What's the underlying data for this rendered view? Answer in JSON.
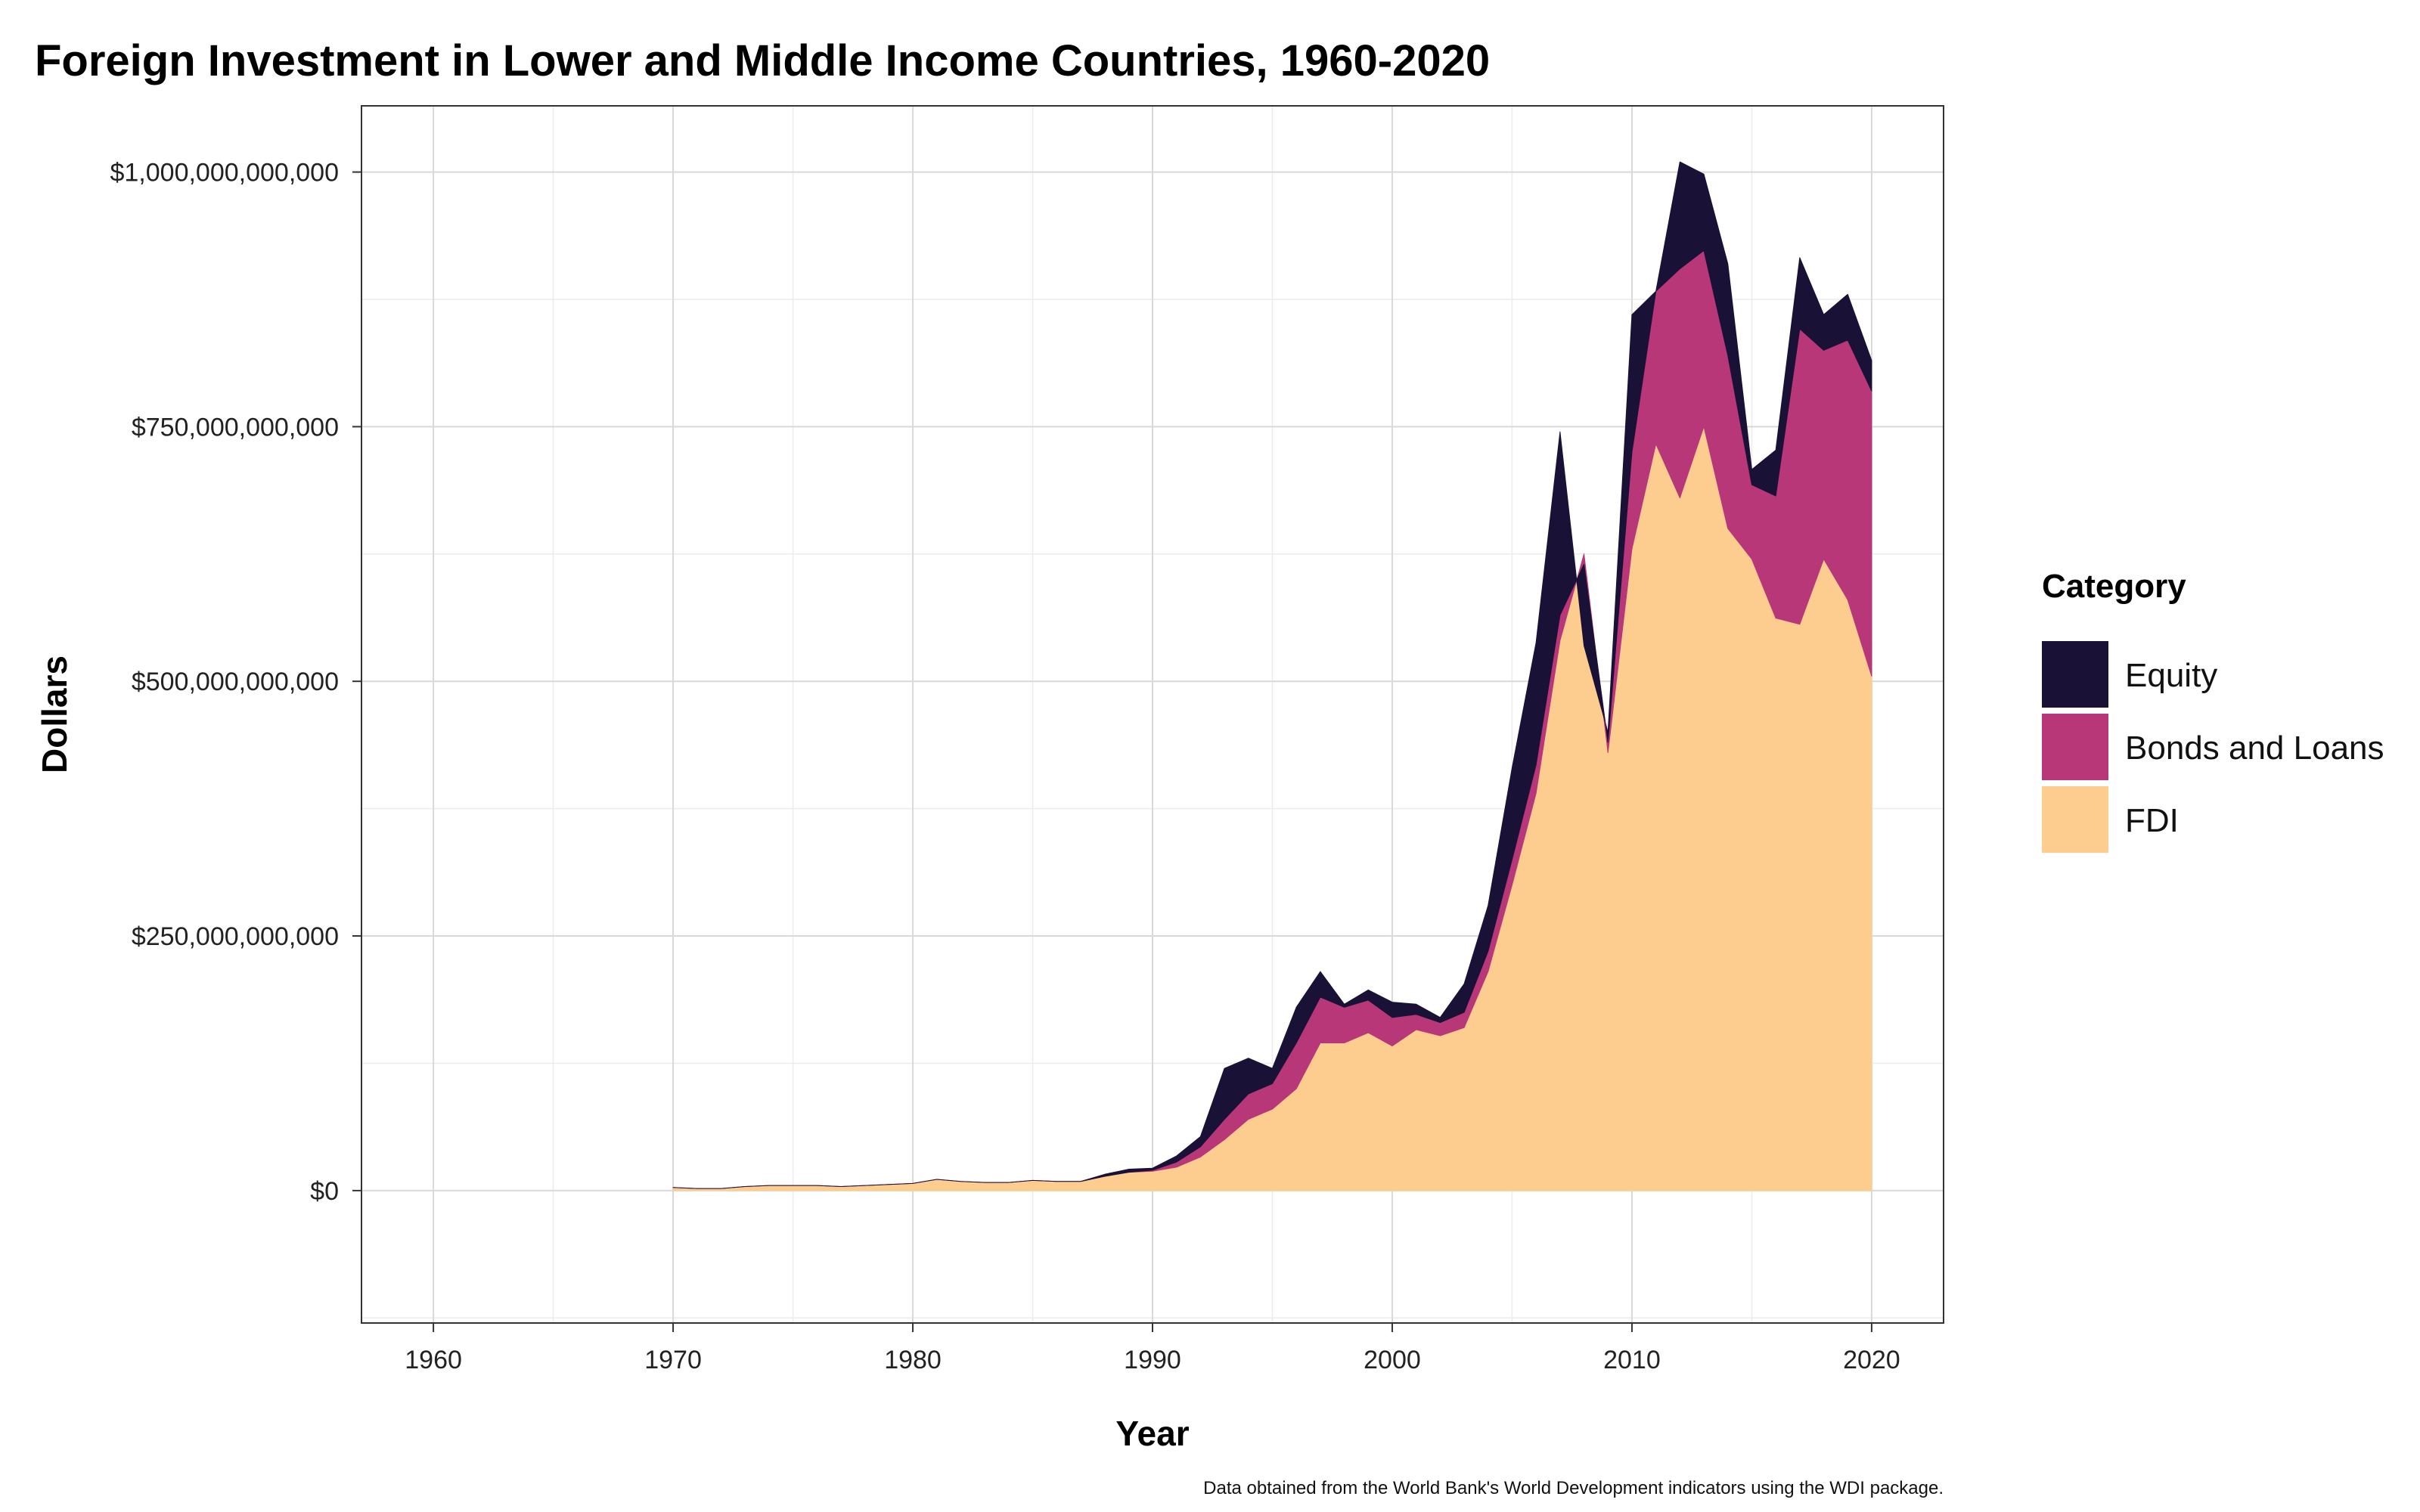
{
  "chart_data": {
    "type": "area",
    "stacked": true,
    "title": "Foreign Investment in Lower and Middle Income Countries, 1960-2020",
    "xlabel": "Year",
    "ylabel": "Dollars",
    "caption": "Data obtained from the World Bank's World Development indicators using the WDI package.",
    "xlim": [
      1957,
      2023
    ],
    "ylim": [
      -130000000000,
      1065000000000
    ],
    "x_ticks": [
      1960,
      1970,
      1980,
      1990,
      2000,
      2010,
      2020
    ],
    "x_tick_labels": [
      "1960",
      "1970",
      "1980",
      "1990",
      "2000",
      "2010",
      "2020"
    ],
    "y_ticks": [
      0,
      250000000000,
      500000000000,
      750000000000,
      1000000000000
    ],
    "y_tick_labels": [
      "$0",
      "$250,000,000,000",
      "$500,000,000,000",
      "$750,000,000,000",
      "$1,000,000,000,000"
    ],
    "grid": true,
    "legend": {
      "title": "Category",
      "position": "right"
    },
    "x": [
      1970,
      1971,
      1972,
      1973,
      1974,
      1975,
      1976,
      1977,
      1978,
      1979,
      1980,
      1981,
      1982,
      1983,
      1984,
      1985,
      1986,
      1987,
      1988,
      1989,
      1990,
      1991,
      1992,
      1993,
      1994,
      1995,
      1996,
      1997,
      1998,
      1999,
      2000,
      2001,
      2002,
      2003,
      2004,
      2005,
      2006,
      2007,
      2008,
      2009,
      2010,
      2011,
      2012,
      2013,
      2014,
      2015,
      2016,
      2017,
      2018,
      2019,
      2020
    ],
    "series": [
      {
        "name": "FDI",
        "color": "#FDCD8F",
        "values": [
          3000000000,
          2000000000,
          2000000000,
          4000000000,
          5000000000,
          5000000000,
          5000000000,
          4000000000,
          5000000000,
          6000000000,
          7000000000,
          11000000000,
          9000000000,
          8000000000,
          8000000000,
          10000000000,
          9000000000,
          9000000000,
          14000000000,
          18000000000,
          19000000000,
          23000000000,
          33000000000,
          50000000000,
          70000000000,
          80000000000,
          100000000000,
          145000000000,
          145000000000,
          155000000000,
          142000000000,
          158000000000,
          152000000000,
          160000000000,
          215000000000,
          300000000000,
          390000000000,
          540000000000,
          625000000000,
          430000000000,
          630000000000,
          733000000000,
          680000000000,
          750000000000,
          650000000000,
          620000000000,
          562000000000,
          556000000000,
          620000000000,
          580000000000,
          505000000000
        ]
      },
      {
        "name": "Bonds and Loans",
        "color": "#B73779",
        "values": [
          0,
          0,
          0,
          0,
          0,
          0,
          0,
          0,
          0,
          0,
          0,
          0,
          0,
          0,
          0,
          0,
          0,
          0,
          0,
          0,
          1000000000,
          5000000000,
          10000000000,
          20000000000,
          25000000000,
          25000000000,
          45000000000,
          45000000000,
          35000000000,
          32000000000,
          28000000000,
          15000000000,
          13000000000,
          15000000000,
          20000000000,
          25000000000,
          28000000000,
          25000000000,
          -10000000000,
          10000000000,
          95000000000,
          150000000000,
          225000000000,
          173000000000,
          170000000000,
          73000000000,
          120000000000,
          290000000000,
          205000000000,
          255000000000,
          280000000000
        ]
      },
      {
        "name": "Equity",
        "color": "#1A1136",
        "values": [
          0,
          0,
          0,
          0,
          0,
          0,
          0,
          0,
          0,
          0,
          0,
          0,
          0,
          0,
          0,
          0,
          0,
          0,
          2000000000,
          3000000000,
          2000000000,
          6000000000,
          10000000000,
          50000000000,
          35000000000,
          15000000000,
          35000000000,
          25000000000,
          3000000000,
          10000000000,
          15000000000,
          10000000000,
          5000000000,
          28000000000,
          45000000000,
          90000000000,
          120000000000,
          180000000000,
          -80000000000,
          10000000000,
          135000000000,
          0,
          105000000000,
          75000000000,
          90000000000,
          15000000000,
          45000000000,
          70000000000,
          35000000000,
          45000000000,
          30000000000
        ]
      }
    ]
  }
}
